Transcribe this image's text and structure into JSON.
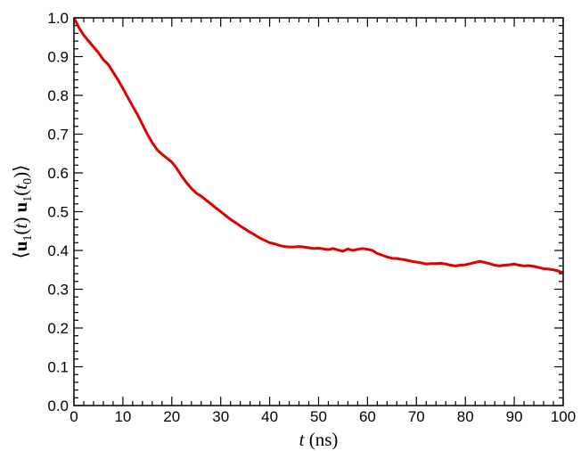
{
  "chart_data": {
    "type": "line",
    "title": "",
    "xlabel": {
      "var": "t",
      "unit": " (ns)"
    },
    "ylabel": {
      "open": "⟨",
      "u": "u",
      "sub": "1",
      "t": "t",
      "t0": "t",
      "t0sub": "0",
      "close": "⟩"
    },
    "xlim": [
      0,
      100
    ],
    "ylim": [
      0.0,
      1.0
    ],
    "xticks": [
      "0",
      "10",
      "20",
      "30",
      "40",
      "50",
      "60",
      "70",
      "80",
      "90",
      "100"
    ],
    "yticks": [
      "0.0",
      "0.1",
      "0.2",
      "0.3",
      "0.4",
      "0.5",
      "0.6",
      "0.7",
      "0.8",
      "0.9",
      "1.0"
    ],
    "grid": false,
    "color": "#e00000",
    "series": [
      {
        "x": [
          0,
          1,
          2,
          3,
          4,
          5,
          6,
          7,
          8,
          9,
          10,
          11,
          12,
          13,
          14,
          15,
          16,
          17,
          18,
          19,
          20,
          21,
          22,
          23,
          24,
          25,
          26,
          27,
          28,
          29,
          30,
          31,
          32,
          33,
          34,
          35,
          36,
          37,
          38,
          39,
          40,
          41,
          42,
          43,
          44,
          45,
          46,
          47,
          48,
          49,
          50,
          51,
          52,
          53,
          54,
          55,
          56,
          57,
          58,
          59,
          60,
          61,
          62,
          63,
          64,
          65,
          66,
          67,
          68,
          69,
          70,
          71,
          72,
          73,
          74,
          75,
          76,
          77,
          78,
          79,
          80,
          81,
          82,
          83,
          84,
          85,
          86,
          87,
          88,
          89,
          90,
          91,
          92,
          93,
          94,
          95,
          96,
          97,
          98,
          99,
          100
        ],
        "values": [
          1.0,
          0.975,
          0.955,
          0.94,
          0.925,
          0.91,
          0.892,
          0.88,
          0.86,
          0.84,
          0.818,
          0.795,
          0.772,
          0.75,
          0.725,
          0.7,
          0.678,
          0.66,
          0.648,
          0.638,
          0.628,
          0.612,
          0.592,
          0.575,
          0.56,
          0.548,
          0.54,
          0.53,
          0.52,
          0.51,
          0.5,
          0.49,
          0.48,
          0.472,
          0.463,
          0.455,
          0.447,
          0.44,
          0.432,
          0.426,
          0.42,
          0.417,
          0.413,
          0.41,
          0.409,
          0.409,
          0.41,
          0.409,
          0.407,
          0.405,
          0.406,
          0.404,
          0.402,
          0.405,
          0.401,
          0.398,
          0.404,
          0.4,
          0.403,
          0.405,
          0.403,
          0.4,
          0.392,
          0.388,
          0.383,
          0.38,
          0.379,
          0.377,
          0.375,
          0.372,
          0.37,
          0.368,
          0.365,
          0.366,
          0.366,
          0.367,
          0.365,
          0.362,
          0.36,
          0.362,
          0.363,
          0.366,
          0.369,
          0.372,
          0.369,
          0.366,
          0.362,
          0.36,
          0.362,
          0.363,
          0.365,
          0.362,
          0.36,
          0.361,
          0.359,
          0.356,
          0.353,
          0.352,
          0.35,
          0.347,
          0.342
        ]
      }
    ]
  }
}
